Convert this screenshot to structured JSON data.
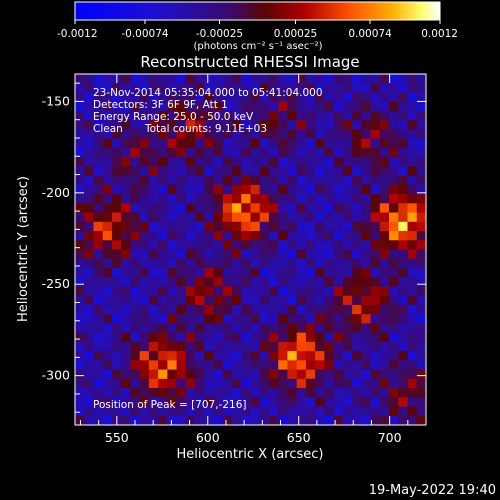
{
  "chart_data": {
    "type": "heatmap",
    "title": "Reconstructed RHESSI Image",
    "xlabel": "Heliocentric X (arcsec)",
    "ylabel": "Heliocentric Y (arcsec)",
    "xlim": [
      527,
      720
    ],
    "ylim": [
      -327,
      -135
    ],
    "x_ticks": [
      550,
      600,
      650,
      700
    ],
    "y_ticks": [
      -150,
      -200,
      -250,
      -300
    ],
    "colorbar": {
      "min": -0.0012,
      "max": 0.0012,
      "tick_labels": [
        "-0.0012",
        "-0.00074",
        "-0.00025",
        "0.00025",
        "0.00074",
        "0.0012"
      ],
      "unit_label": "(photons cm⁻² s⁻¹ asec⁻²)"
    },
    "annotations": {
      "time_range": "23-Nov-2014 05:35:04.000 to 05:41:04.000",
      "detectors": "Detectors: 3F 6F 9F, Att 1",
      "energy_range": "Energy Range: 25.0 - 50.0 keV",
      "clean_label": "Clean",
      "total_counts": "Total counts: 9.11E+03",
      "peak": "Position of Peak = [707,-216]"
    },
    "sources": [
      {
        "x": 620,
        "y": -210,
        "value": 0.0011
      },
      {
        "x": 707,
        "y": -216,
        "value": 0.0012
      },
      {
        "x": 575,
        "y": -295,
        "value": 0.001
      },
      {
        "x": 650,
        "y": -290,
        "value": 0.0011
      },
      {
        "x": 545,
        "y": -220,
        "value": 0.0008
      },
      {
        "x": 590,
        "y": -165,
        "value": 0.0006
      },
      {
        "x": 690,
        "y": -170,
        "value": 0.0005
      },
      {
        "x": 600,
        "y": -255,
        "value": 0.0006
      },
      {
        "x": 685,
        "y": -260,
        "value": 0.0007
      },
      {
        "x": 560,
        "y": -180,
        "value": 0.0004
      },
      {
        "x": 640,
        "y": -160,
        "value": 0.0004
      },
      {
        "x": 710,
        "y": -310,
        "value": 0.0005
      }
    ],
    "colors": {
      "low": "#0000ff",
      "mid": "#400060",
      "high": "#ffffff",
      "background": "#000000"
    }
  },
  "footer": {
    "timestamp": "19-May-2022 19:40"
  }
}
